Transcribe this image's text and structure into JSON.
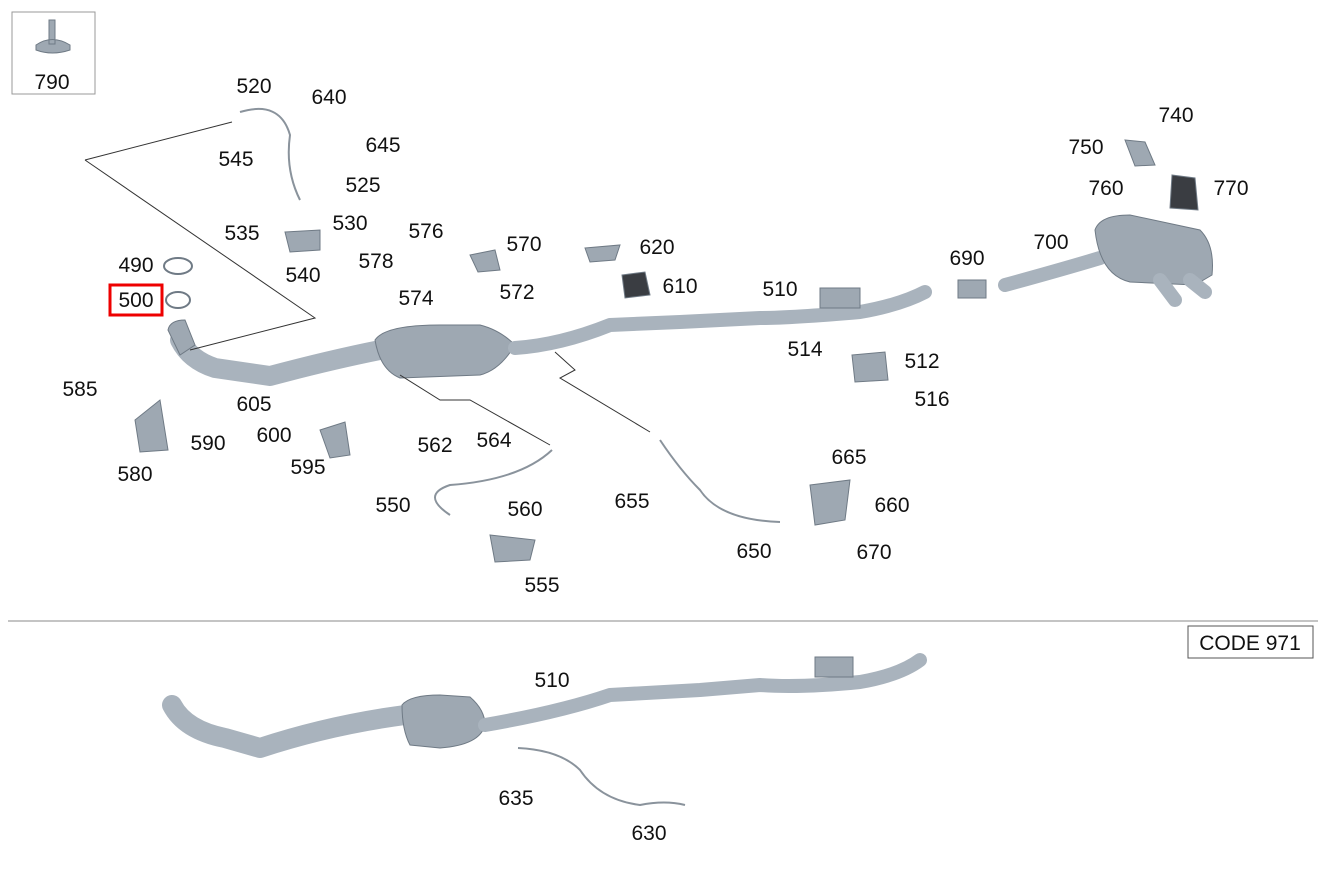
{
  "callouts": [
    "790",
    "520",
    "640",
    "545",
    "645",
    "525",
    "535",
    "530",
    "540",
    "576",
    "570",
    "578",
    "574",
    "572",
    "620",
    "610",
    "510",
    "690",
    "700",
    "740",
    "750",
    "760",
    "770",
    "490",
    "500",
    "514",
    "512",
    "516",
    "585",
    "605",
    "600",
    "590",
    "580",
    "595",
    "562",
    "564",
    "550",
    "560",
    "555",
    "655",
    "665",
    "660",
    "650",
    "670",
    "510",
    "635",
    "630"
  ],
  "code_box": "CODE 971"
}
